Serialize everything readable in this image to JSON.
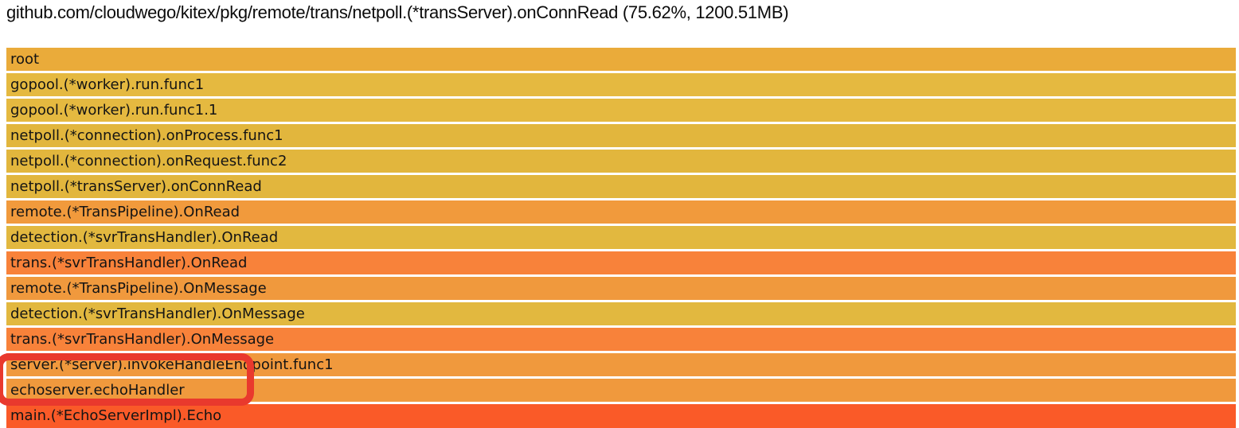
{
  "header": {
    "title": "github.com/cloudwego/kitex/pkg/remote/trans/netpoll.(*transServer).onConnRead (75.62%, 1200.51MB)"
  },
  "chart_data": {
    "type": "flamegraph",
    "orientation": "top-down-stack",
    "selected_frame": {
      "name": "github.com/cloudwego/kitex/pkg/remote/trans/netpoll.(*transServer).onConnRead",
      "percent": "75.62%",
      "value": "1200.51MB"
    },
    "frames": [
      {
        "depth": 0,
        "label": "root",
        "color": "#eaab3a"
      },
      {
        "depth": 1,
        "label": "gopool.(*worker).run.func1",
        "color": "#e5b940"
      },
      {
        "depth": 2,
        "label": "gopool.(*worker).run.func1.1",
        "color": "#e5b940"
      },
      {
        "depth": 3,
        "label": "netpoll.(*connection).onProcess.func1",
        "color": "#e2b63d"
      },
      {
        "depth": 4,
        "label": "netpoll.(*connection).onRequest.func2",
        "color": "#e2b63d"
      },
      {
        "depth": 5,
        "label": "netpoll.(*transServer).onConnRead",
        "color": "#e2b63d"
      },
      {
        "depth": 6,
        "label": "remote.(*TransPipeline).OnRead",
        "color": "#f19a3c"
      },
      {
        "depth": 7,
        "label": "detection.(*svrTransHandler).OnRead",
        "color": "#e2b83f"
      },
      {
        "depth": 8,
        "label": "trans.(*svrTransHandler).OnRead",
        "color": "#f8823a"
      },
      {
        "depth": 9,
        "label": "remote.(*TransPipeline).OnMessage",
        "color": "#f0993d"
      },
      {
        "depth": 10,
        "label": "detection.(*svrTransHandler).OnMessage",
        "color": "#e2b83f"
      },
      {
        "depth": 11,
        "label": "trans.(*svrTransHandler).OnMessage",
        "color": "#f8823a"
      },
      {
        "depth": 12,
        "label": "server.(*server).invokeHandleEndpoint.func1",
        "color": "#f0993d"
      },
      {
        "depth": 13,
        "label": "echoserver.echoHandler",
        "color": "#f0993d"
      },
      {
        "depth": 14,
        "label": "main.(*EchoServerImpl).Echo",
        "color": "#fa5a28"
      }
    ],
    "highlighted_frames": [
      "server.(*server).invokeHandleEndpoint.func1",
      "echoserver.echoHandler"
    ]
  },
  "annotation": {
    "shape": "rounded-rectangle",
    "color": "#e9392d"
  }
}
